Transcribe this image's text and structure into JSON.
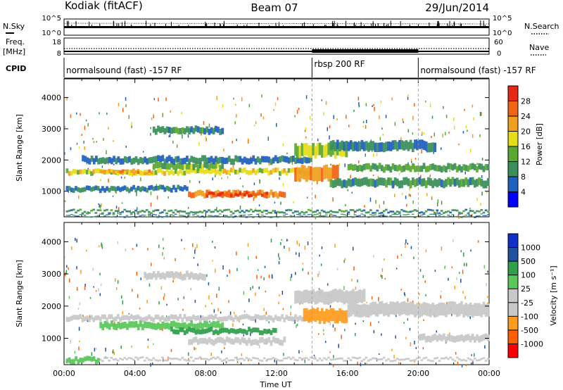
{
  "header": {
    "station": "Kodiak (fitACF)",
    "beam": "Beam 07",
    "date": "29/Jun/2014"
  },
  "strips": {
    "nsky_label": "N.Sky",
    "nsearch_label": "N.Search",
    "nsky_ticks": [
      "10^5",
      "10^0"
    ],
    "nsearch_ticks": [
      "10^5",
      "10^0"
    ],
    "freq_label": "Freq.",
    "freq_unit": "[MHz]",
    "freq_ticks": [
      "18",
      "8"
    ],
    "nave_label": "Nave",
    "nave_ticks": [
      "60",
      "0"
    ],
    "cpid_label": "CPID",
    "cpid_segments": [
      {
        "label": "normalsound (fast) -157 RF",
        "start": 0,
        "end": 14
      },
      {
        "label": "rbsp 200 RF",
        "start": 14,
        "end": 20
      },
      {
        "label": "normalsound (fast) -157 RF",
        "start": 20,
        "end": 24
      }
    ]
  },
  "colors": {
    "power": [
      "#0000ff",
      "#1f5fbf",
      "#3a8f5a",
      "#5aa832",
      "#e6dc19",
      "#f0a01e",
      "#f06414",
      "#e62814",
      "#ff0000"
    ],
    "velocity": [
      "#ff0000",
      "#ff5f00",
      "#ff9c1e",
      "#c8c8c8",
      "#c8c8c8",
      "#5ac85a",
      "#2f9f4b",
      "#20509f",
      "#1030c8"
    ]
  },
  "chart_data": [
    {
      "type": "heatmap",
      "name": "power",
      "xlabel": "",
      "ylabel": "Slant Range [km]",
      "xlim": [
        0,
        24
      ],
      "ylim": [
        180,
        4600
      ],
      "yticks": [
        1000,
        2000,
        3000,
        4000
      ],
      "colorbar": {
        "label": "Power [dB]",
        "ticks": [
          4,
          8,
          12,
          16,
          20,
          24,
          28
        ],
        "range": [
          0,
          32
        ]
      },
      "bands": [
        {
          "t": [
            0.1,
            24
          ],
          "r": [
            320,
            380
          ],
          "v": 10
        },
        {
          "t": [
            0.1,
            24
          ],
          "r": [
            200,
            230
          ],
          "v": 9
        },
        {
          "t": [
            0.1,
            14
          ],
          "r": [
            1550,
            1700
          ],
          "v": 18
        },
        {
          "t": [
            2,
            5
          ],
          "r": [
            1550,
            1650
          ],
          "v": 22
        },
        {
          "t": [
            5,
            9
          ],
          "r": [
            1700,
            1900
          ],
          "v": 14
        },
        {
          "t": [
            1,
            14
          ],
          "r": [
            1900,
            2100
          ],
          "v": 8
        },
        {
          "t": [
            5,
            9
          ],
          "r": [
            2850,
            3050
          ],
          "v": 10
        },
        {
          "t": [
            7,
            12.5
          ],
          "r": [
            820,
            1000
          ],
          "v": 24
        },
        {
          "t": [
            8,
            11.5
          ],
          "r": [
            850,
            950
          ],
          "v": 28
        },
        {
          "t": [
            13,
            15.5
          ],
          "r": [
            1350,
            1800
          ],
          "v": 24
        },
        {
          "t": [
            13,
            16
          ],
          "r": [
            2100,
            2500
          ],
          "v": 16
        },
        {
          "t": [
            15,
            24
          ],
          "r": [
            1150,
            1400
          ],
          "v": 10
        },
        {
          "t": [
            16,
            24
          ],
          "r": [
            1650,
            1850
          ],
          "v": 12
        },
        {
          "t": [
            15,
            21
          ],
          "r": [
            2300,
            2600
          ],
          "v": 8
        },
        {
          "t": [
            0.1,
            7
          ],
          "r": [
            1000,
            1150
          ],
          "v": 8
        }
      ]
    },
    {
      "type": "heatmap",
      "name": "velocity",
      "xlabel": "Time UT",
      "ylabel": "Slant Range [km]",
      "xlim": [
        0,
        24
      ],
      "ylim": [
        180,
        4600
      ],
      "yticks": [
        1000,
        2000,
        3000,
        4000
      ],
      "xticks": [
        "00:00",
        "04:00",
        "08:00",
        "12:00",
        "16:00",
        "20:00",
        "00:00"
      ],
      "xtick_values": [
        0,
        4,
        8,
        12,
        16,
        20,
        24
      ],
      "colorbar": {
        "label": "Velocity [m s⁻¹]",
        "ticks": [
          "-1000",
          "-500",
          "-100",
          "-25",
          "25",
          "100",
          "500",
          "1000"
        ]
      },
      "bands": [
        {
          "t": [
            0.1,
            24
          ],
          "r": [
            320,
            380
          ],
          "v": 0
        },
        {
          "t": [
            0.1,
            14
          ],
          "r": [
            1550,
            1700
          ],
          "v": 0
        },
        {
          "t": [
            2,
            9
          ],
          "r": [
            1300,
            1500
          ],
          "v": 60
        },
        {
          "t": [
            6,
            12
          ],
          "r": [
            1150,
            1300
          ],
          "v": 150
        },
        {
          "t": [
            7,
            12.5
          ],
          "r": [
            820,
            1000
          ],
          "v": 0
        },
        {
          "t": [
            4.5,
            8
          ],
          "r": [
            2850,
            3050
          ],
          "v": -60
        },
        {
          "t": [
            13.5,
            16
          ],
          "r": [
            1500,
            1900
          ],
          "v": -200
        },
        {
          "t": [
            13,
            17
          ],
          "r": [
            2100,
            2500
          ],
          "v": 0
        },
        {
          "t": [
            16,
            24
          ],
          "r": [
            1700,
            2100
          ],
          "v": 0
        },
        {
          "t": [
            20,
            24
          ],
          "r": [
            900,
            1100
          ],
          "v": 0
        },
        {
          "t": [
            0.1,
            2
          ],
          "r": [
            250,
            400
          ],
          "v": 80
        }
      ]
    }
  ]
}
